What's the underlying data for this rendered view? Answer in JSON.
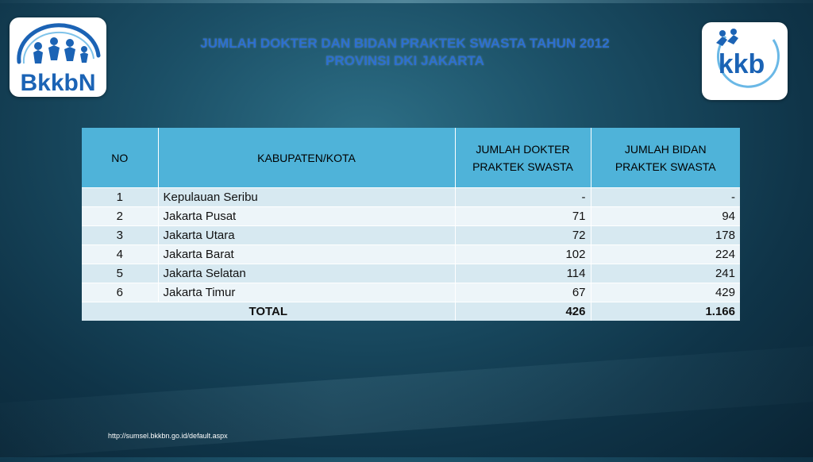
{
  "logos": {
    "left": {
      "name": "bkkbn-logo",
      "text": "BkkbN"
    },
    "right": {
      "name": "kkb-logo",
      "text": "kkb"
    }
  },
  "title": {
    "line1": "JUMLAH DOKTER DAN BIDAN PRAKTEK SWASTA TAHUN 2012",
    "line2": "PROVINSI DKI JAKARTA"
  },
  "table": {
    "headers": {
      "no": "NO",
      "kabupaten": "KABUPATEN/KOTA",
      "dokter_line1": "JUMLAH DOKTER",
      "dokter_line2": "PRAKTEK SWASTA",
      "bidan_line1": "JUMLAH BIDAN",
      "bidan_line2": "PRAKTEK SWASTA"
    },
    "rows": [
      {
        "no": "1",
        "kota": "Kepulauan Seribu",
        "dokter": "-",
        "bidan": "-"
      },
      {
        "no": "2",
        "kota": "Jakarta Pusat",
        "dokter": "71",
        "bidan": "94"
      },
      {
        "no": "3",
        "kota": "Jakarta Utara",
        "dokter": "72",
        "bidan": "178"
      },
      {
        "no": "4",
        "kota": "Jakarta Barat",
        "dokter": "102",
        "bidan": "224"
      },
      {
        "no": "5",
        "kota": "Jakarta Selatan",
        "dokter": "114",
        "bidan": "241"
      },
      {
        "no": "6",
        "kota": "Jakarta Timur",
        "dokter": "67",
        "bidan": "429"
      }
    ],
    "total": {
      "label": "TOTAL",
      "dokter": "426",
      "bidan": "1.166"
    }
  },
  "footer": {
    "url": "http://sumsel.bkkbn.go.id/default.aspx"
  },
  "colors": {
    "header_bg": "#4fb3d9",
    "row_odd": "#d7e9f1",
    "row_even": "#edf5f9",
    "title": "#2c6fd0",
    "logo_blue": "#1b63b5"
  }
}
